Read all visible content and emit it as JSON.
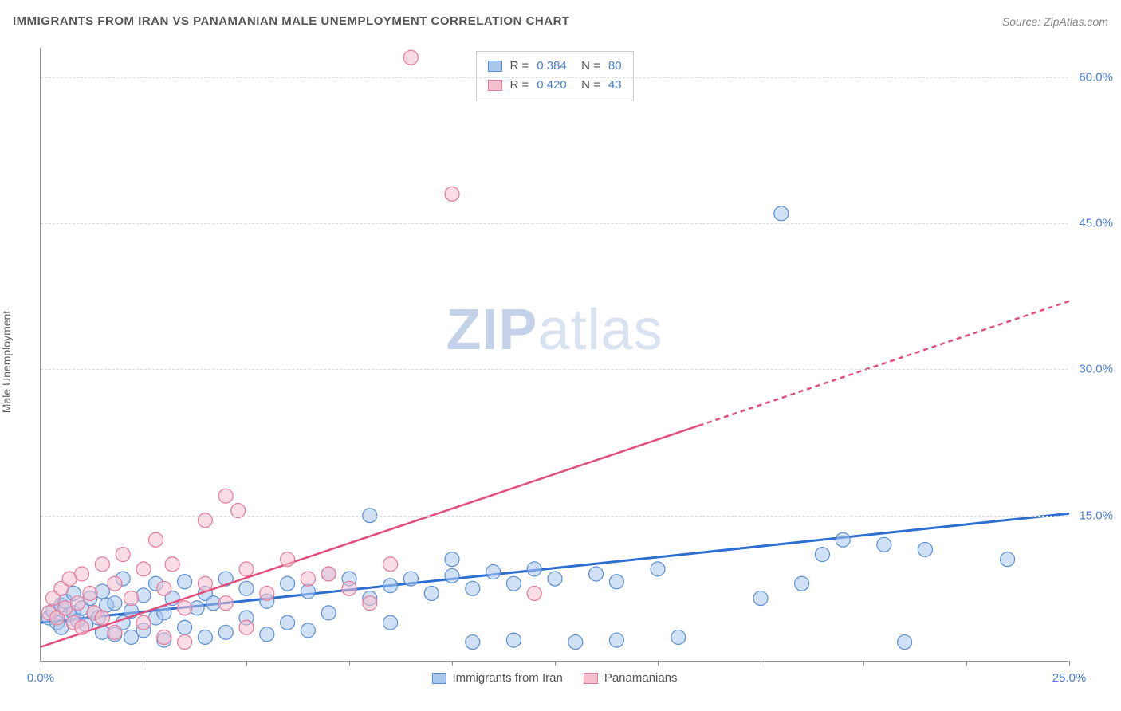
{
  "title": "IMMIGRANTS FROM IRAN VS PANAMANIAN MALE UNEMPLOYMENT CORRELATION CHART",
  "source": "Source: ZipAtlas.com",
  "y_axis_label": "Male Unemployment",
  "watermark_zip": "ZIP",
  "watermark_atlas": "atlas",
  "chart": {
    "type": "scatter",
    "xlim": [
      0,
      25
    ],
    "ylim": [
      0,
      63
    ],
    "x_ticks": [
      0,
      2.5,
      5,
      7.5,
      10,
      12.5,
      15,
      17.5,
      20,
      22.5,
      25
    ],
    "x_tick_labels": {
      "0": "0.0%",
      "25": "25.0%"
    },
    "y_gridlines": [
      15,
      30,
      45,
      60
    ],
    "y_tick_labels": {
      "15": "15.0%",
      "30": "30.0%",
      "45": "45.0%",
      "60": "60.0%"
    },
    "background_color": "#ffffff",
    "grid_color": "#dddddd",
    "axis_color": "#999999",
    "value_text_color": "#4a7fd4",
    "label_text_color": "#666666"
  },
  "series": [
    {
      "id": "iran",
      "label": "Immigrants from Iran",
      "color_fill": "#a9c6ed",
      "color_stroke": "#5a8fd6",
      "marker_radius": 9,
      "fill_opacity": 0.55,
      "r_value": "0.384",
      "n_value": "80",
      "trend": {
        "x1": 0,
        "y1": 4.0,
        "x2": 25,
        "y2": 15.2,
        "solid_until_x": 25,
        "color": "#2d6fd0",
        "width": 3
      },
      "points": [
        [
          0.2,
          4.5
        ],
        [
          0.3,
          5.2
        ],
        [
          0.4,
          4.0
        ],
        [
          0.5,
          5.8
        ],
        [
          0.5,
          3.5
        ],
        [
          0.6,
          6.2
        ],
        [
          0.7,
          4.8
        ],
        [
          0.8,
          5.0
        ],
        [
          0.8,
          7.0
        ],
        [
          0.9,
          4.2
        ],
        [
          1.0,
          5.5
        ],
        [
          1.1,
          3.8
        ],
        [
          1.2,
          6.5
        ],
        [
          1.3,
          5.0
        ],
        [
          1.4,
          4.5
        ],
        [
          1.5,
          7.2
        ],
        [
          1.5,
          3.0
        ],
        [
          1.6,
          5.8
        ],
        [
          1.8,
          6.0
        ],
        [
          1.8,
          2.8
        ],
        [
          2.0,
          8.5
        ],
        [
          2.0,
          4.0
        ],
        [
          2.2,
          5.2
        ],
        [
          2.2,
          2.5
        ],
        [
          2.5,
          6.8
        ],
        [
          2.5,
          3.2
        ],
        [
          2.8,
          8.0
        ],
        [
          2.8,
          4.5
        ],
        [
          3.0,
          5.0
        ],
        [
          3.0,
          2.2
        ],
        [
          3.2,
          6.5
        ],
        [
          3.5,
          8.2
        ],
        [
          3.5,
          3.5
        ],
        [
          3.8,
          5.5
        ],
        [
          4.0,
          7.0
        ],
        [
          4.0,
          2.5
        ],
        [
          4.2,
          6.0
        ],
        [
          4.5,
          8.5
        ],
        [
          4.5,
          3.0
        ],
        [
          5.0,
          7.5
        ],
        [
          5.0,
          4.5
        ],
        [
          5.5,
          6.2
        ],
        [
          5.5,
          2.8
        ],
        [
          6.0,
          8.0
        ],
        [
          6.0,
          4.0
        ],
        [
          6.5,
          7.2
        ],
        [
          6.5,
          3.2
        ],
        [
          7.0,
          9.0
        ],
        [
          7.0,
          5.0
        ],
        [
          7.5,
          8.5
        ],
        [
          8.0,
          15.0
        ],
        [
          8.0,
          6.5
        ],
        [
          8.5,
          7.8
        ],
        [
          8.5,
          4.0
        ],
        [
          9.0,
          8.5
        ],
        [
          9.5,
          7.0
        ],
        [
          10.0,
          8.8
        ],
        [
          10.0,
          10.5
        ],
        [
          10.5,
          7.5
        ],
        [
          10.5,
          2.0
        ],
        [
          11.0,
          9.2
        ],
        [
          11.5,
          8.0
        ],
        [
          11.5,
          2.2
        ],
        [
          12.0,
          9.5
        ],
        [
          12.5,
          8.5
        ],
        [
          13.0,
          2.0
        ],
        [
          13.5,
          9.0
        ],
        [
          14.0,
          8.2
        ],
        [
          14.0,
          2.2
        ],
        [
          15.0,
          9.5
        ],
        [
          15.5,
          2.5
        ],
        [
          17.5,
          6.5
        ],
        [
          18.0,
          46.0
        ],
        [
          18.5,
          8.0
        ],
        [
          19.0,
          11.0
        ],
        [
          19.5,
          12.5
        ],
        [
          20.5,
          12.0
        ],
        [
          21.0,
          2.0
        ],
        [
          21.5,
          11.5
        ],
        [
          23.5,
          10.5
        ]
      ]
    },
    {
      "id": "panamanians",
      "label": "Panamanians",
      "color_fill": "#f5c0ce",
      "color_stroke": "#e77a9a",
      "marker_radius": 9,
      "fill_opacity": 0.55,
      "r_value": "0.420",
      "n_value": "43",
      "trend": {
        "x1": 0,
        "y1": 1.5,
        "x2": 25,
        "y2": 37.0,
        "solid_until_x": 16,
        "color": "#e54d7a",
        "width": 2.5,
        "dash": "6,5"
      },
      "points": [
        [
          0.2,
          5.0
        ],
        [
          0.3,
          6.5
        ],
        [
          0.4,
          4.5
        ],
        [
          0.5,
          7.5
        ],
        [
          0.6,
          5.5
        ],
        [
          0.7,
          8.5
        ],
        [
          0.8,
          4.0
        ],
        [
          0.9,
          6.0
        ],
        [
          1.0,
          9.0
        ],
        [
          1.0,
          3.5
        ],
        [
          1.2,
          7.0
        ],
        [
          1.3,
          5.0
        ],
        [
          1.5,
          10.0
        ],
        [
          1.5,
          4.5
        ],
        [
          1.8,
          8.0
        ],
        [
          1.8,
          3.0
        ],
        [
          2.0,
          11.0
        ],
        [
          2.2,
          6.5
        ],
        [
          2.5,
          9.5
        ],
        [
          2.5,
          4.0
        ],
        [
          2.8,
          12.5
        ],
        [
          3.0,
          7.5
        ],
        [
          3.0,
          2.5
        ],
        [
          3.2,
          10.0
        ],
        [
          3.5,
          5.5
        ],
        [
          3.5,
          2.0
        ],
        [
          4.0,
          14.5
        ],
        [
          4.0,
          8.0
        ],
        [
          4.5,
          17.0
        ],
        [
          4.5,
          6.0
        ],
        [
          4.8,
          15.5
        ],
        [
          5.0,
          9.5
        ],
        [
          5.0,
          3.5
        ],
        [
          5.5,
          7.0
        ],
        [
          6.0,
          10.5
        ],
        [
          6.5,
          8.5
        ],
        [
          7.0,
          9.0
        ],
        [
          7.5,
          7.5
        ],
        [
          8.0,
          6.0
        ],
        [
          8.5,
          10.0
        ],
        [
          9.0,
          62.0
        ],
        [
          10.0,
          48.0
        ],
        [
          12.0,
          7.0
        ]
      ]
    }
  ],
  "legend_top_labels": {
    "r": "R",
    "n": "N",
    "eq": "="
  },
  "bottom_legend": [
    {
      "ref": "iran"
    },
    {
      "ref": "panamanians"
    }
  ]
}
